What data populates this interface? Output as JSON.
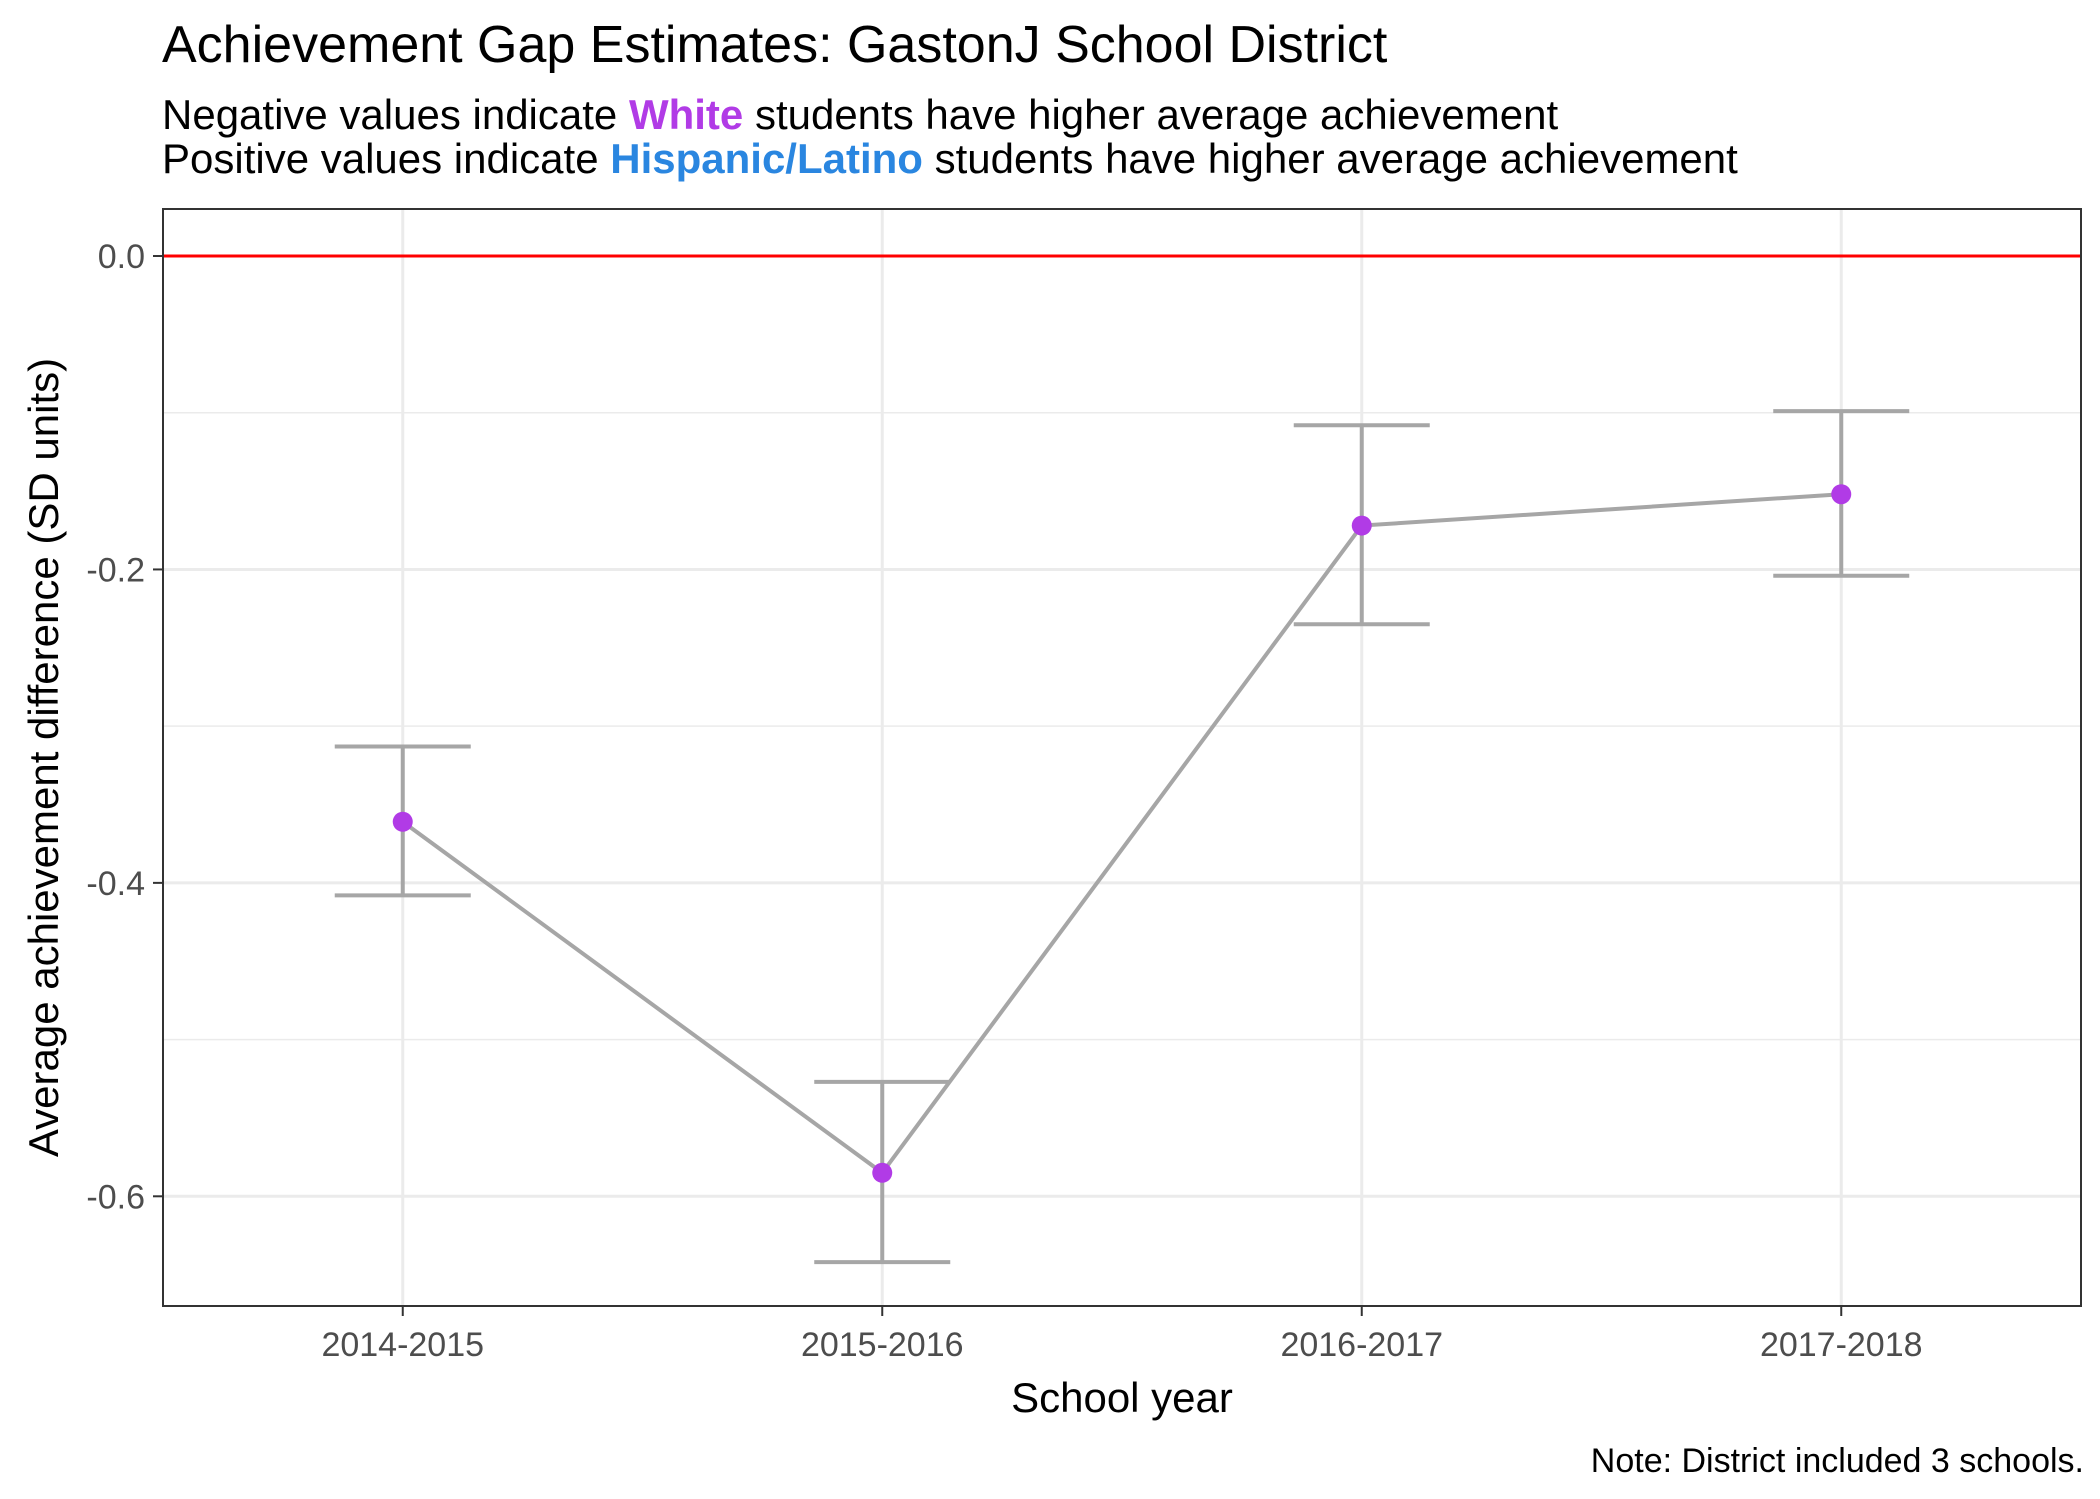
{
  "chart_data": {
    "type": "line",
    "title": "Achievement Gap Estimates: GastonJ School District",
    "subtitle_lines": [
      {
        "before": "Negative values indicate",
        "highlight": "White",
        "after": "students have higher average achievement",
        "highlight_color": "#b13be6"
      },
      {
        "before": "Positive values indicate",
        "highlight": "Hispanic/Latino",
        "after": "students have higher average achievement",
        "highlight_color": "#2a86e0"
      }
    ],
    "xlabel": "School year",
    "ylabel": "Average achievement difference (SD units)",
    "categories": [
      "2014-2015",
      "2015-2016",
      "2016-2017",
      "2017-2018"
    ],
    "values": [
      -0.361,
      -0.585,
      -0.172,
      -0.152
    ],
    "lower": [
      -0.408,
      -0.642,
      -0.235,
      -0.204
    ],
    "upper": [
      -0.313,
      -0.527,
      -0.108,
      -0.099
    ],
    "ylim": [
      -0.67,
      0.03
    ],
    "yticks": [
      0.0,
      -0.2,
      -0.4,
      -0.6
    ],
    "ytick_labels": [
      "0.0",
      "-0.2",
      "-0.4",
      "-0.6"
    ],
    "reference_line": 0.0,
    "grid": true,
    "colors": {
      "point": "#b13be6",
      "line": "#a6a6a6",
      "errorbar": "#a6a6a6",
      "reference": "#ff0000",
      "grid": "#ebebeb",
      "panel_border": "#333333"
    }
  },
  "note": "Note: District included 3 schools."
}
